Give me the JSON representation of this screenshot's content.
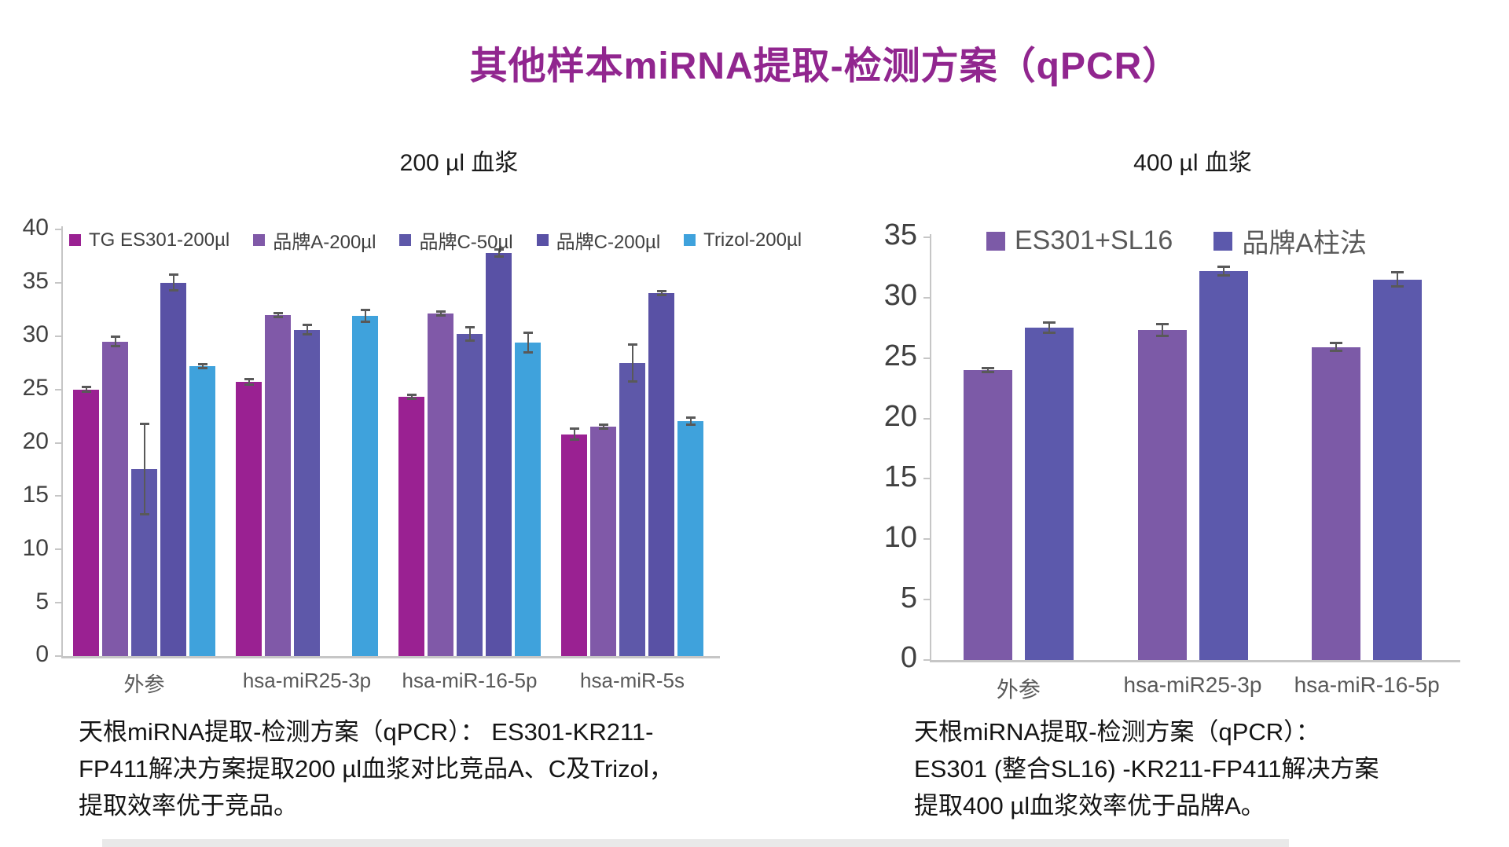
{
  "page": {
    "title": "其他样本miRNA提取-检测方案（qPCR）",
    "title_color": "#91268F",
    "background": "#ffffff"
  },
  "chart_data": [
    {
      "type": "bar",
      "subtitle": "200 µl 血浆",
      "categories": [
        "外参",
        "hsa-miR25-3p",
        "hsa-miR-16-5p",
        "hsa-miR-5s"
      ],
      "series": [
        {
          "name": "TG ES301-200µl",
          "color": "#9A2192",
          "values": [
            25.0,
            25.7,
            24.3,
            20.8
          ],
          "errors": [
            0.2,
            0.2,
            0.15,
            0.5
          ]
        },
        {
          "name": "品牌A-200µl",
          "color": "#8059A8",
          "values": [
            29.5,
            32.0,
            32.1,
            21.5
          ],
          "errors": [
            0.4,
            0.15,
            0.15,
            0.15
          ]
        },
        {
          "name": "品牌C-50µl",
          "color": "#5E58A9",
          "values": [
            17.5,
            30.6,
            30.2,
            27.5
          ],
          "errors": [
            4.2,
            0.4,
            0.6,
            1.7
          ]
        },
        {
          "name": "品牌C-200µl",
          "color": "#5951A5",
          "values": [
            35.0,
            null,
            37.8,
            34.0
          ],
          "errors": [
            0.7,
            0,
            0.3,
            0.15
          ]
        },
        {
          "name": "Trizol-200µl",
          "color": "#3FA2DC",
          "values": [
            27.2,
            31.9,
            29.4,
            22.0
          ],
          "errors": [
            0.15,
            0.5,
            0.9,
            0.3
          ]
        }
      ],
      "ylim": [
        0,
        40
      ],
      "yticks": [
        0,
        5,
        10,
        15,
        20,
        25,
        30,
        35,
        40
      ],
      "grid": false,
      "legend_position": "top-inside",
      "error_bars": true,
      "caption": "天根miRNA提取-检测方案（qPCR）： ES301-KR211-\nFP411解决方案提取200 µl血浆对比竞品A、C及Trizol，\n提取效率优于竞品。"
    },
    {
      "type": "bar",
      "subtitle": "400 µl 血浆",
      "categories": [
        "外参",
        "hsa-miR25-3p",
        "hsa-miR-16-5p"
      ],
      "series": [
        {
          "name": "ES301+SL16",
          "color": "#7C5AA7",
          "values": [
            24.0,
            27.3,
            25.9
          ],
          "errors": [
            0.15,
            0.45,
            0.3
          ]
        },
        {
          "name": "品牌A柱法",
          "color": "#5C59AC",
          "values": [
            27.5,
            32.2,
            31.5
          ],
          "errors": [
            0.4,
            0.3,
            0.55
          ]
        }
      ],
      "ylim": [
        0,
        35
      ],
      "yticks": [
        0,
        5,
        10,
        15,
        20,
        25,
        30,
        35
      ],
      "grid": false,
      "legend_position": "top-inside",
      "error_bars": true,
      "caption": "天根miRNA提取-检测方案（qPCR）：\nES301 (整合SL16) -KR211-FP411解决方案\n提取400 µl血浆效率优于品牌A。"
    }
  ]
}
